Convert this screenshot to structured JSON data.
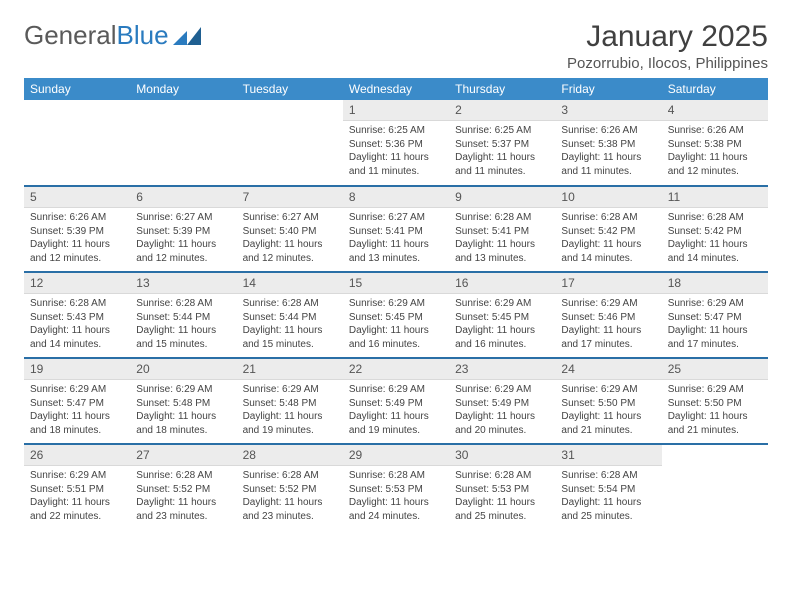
{
  "logo": {
    "text1": "General",
    "text2": "Blue"
  },
  "title": "January 2025",
  "location": "Pozorrubio, Ilocos, Philippines",
  "colors": {
    "header_bg": "#3b8bc9",
    "header_text": "#ffffff",
    "daynum_bg": "#ececec",
    "row_divider": "#2a6fa6",
    "logo_gray": "#5a5a5a",
    "logo_blue": "#2a7bbf"
  },
  "weekdays": [
    "Sunday",
    "Monday",
    "Tuesday",
    "Wednesday",
    "Thursday",
    "Friday",
    "Saturday"
  ],
  "weeks": [
    [
      {
        "empty": true
      },
      {
        "empty": true
      },
      {
        "empty": true
      },
      {
        "day": "1",
        "sunrise": "Sunrise: 6:25 AM",
        "sunset": "Sunset: 5:36 PM",
        "daylight1": "Daylight: 11 hours",
        "daylight2": "and 11 minutes."
      },
      {
        "day": "2",
        "sunrise": "Sunrise: 6:25 AM",
        "sunset": "Sunset: 5:37 PM",
        "daylight1": "Daylight: 11 hours",
        "daylight2": "and 11 minutes."
      },
      {
        "day": "3",
        "sunrise": "Sunrise: 6:26 AM",
        "sunset": "Sunset: 5:38 PM",
        "daylight1": "Daylight: 11 hours",
        "daylight2": "and 11 minutes."
      },
      {
        "day": "4",
        "sunrise": "Sunrise: 6:26 AM",
        "sunset": "Sunset: 5:38 PM",
        "daylight1": "Daylight: 11 hours",
        "daylight2": "and 12 minutes."
      }
    ],
    [
      {
        "day": "5",
        "sunrise": "Sunrise: 6:26 AM",
        "sunset": "Sunset: 5:39 PM",
        "daylight1": "Daylight: 11 hours",
        "daylight2": "and 12 minutes."
      },
      {
        "day": "6",
        "sunrise": "Sunrise: 6:27 AM",
        "sunset": "Sunset: 5:39 PM",
        "daylight1": "Daylight: 11 hours",
        "daylight2": "and 12 minutes."
      },
      {
        "day": "7",
        "sunrise": "Sunrise: 6:27 AM",
        "sunset": "Sunset: 5:40 PM",
        "daylight1": "Daylight: 11 hours",
        "daylight2": "and 12 minutes."
      },
      {
        "day": "8",
        "sunrise": "Sunrise: 6:27 AM",
        "sunset": "Sunset: 5:41 PM",
        "daylight1": "Daylight: 11 hours",
        "daylight2": "and 13 minutes."
      },
      {
        "day": "9",
        "sunrise": "Sunrise: 6:28 AM",
        "sunset": "Sunset: 5:41 PM",
        "daylight1": "Daylight: 11 hours",
        "daylight2": "and 13 minutes."
      },
      {
        "day": "10",
        "sunrise": "Sunrise: 6:28 AM",
        "sunset": "Sunset: 5:42 PM",
        "daylight1": "Daylight: 11 hours",
        "daylight2": "and 14 minutes."
      },
      {
        "day": "11",
        "sunrise": "Sunrise: 6:28 AM",
        "sunset": "Sunset: 5:42 PM",
        "daylight1": "Daylight: 11 hours",
        "daylight2": "and 14 minutes."
      }
    ],
    [
      {
        "day": "12",
        "sunrise": "Sunrise: 6:28 AM",
        "sunset": "Sunset: 5:43 PM",
        "daylight1": "Daylight: 11 hours",
        "daylight2": "and 14 minutes."
      },
      {
        "day": "13",
        "sunrise": "Sunrise: 6:28 AM",
        "sunset": "Sunset: 5:44 PM",
        "daylight1": "Daylight: 11 hours",
        "daylight2": "and 15 minutes."
      },
      {
        "day": "14",
        "sunrise": "Sunrise: 6:28 AM",
        "sunset": "Sunset: 5:44 PM",
        "daylight1": "Daylight: 11 hours",
        "daylight2": "and 15 minutes."
      },
      {
        "day": "15",
        "sunrise": "Sunrise: 6:29 AM",
        "sunset": "Sunset: 5:45 PM",
        "daylight1": "Daylight: 11 hours",
        "daylight2": "and 16 minutes."
      },
      {
        "day": "16",
        "sunrise": "Sunrise: 6:29 AM",
        "sunset": "Sunset: 5:45 PM",
        "daylight1": "Daylight: 11 hours",
        "daylight2": "and 16 minutes."
      },
      {
        "day": "17",
        "sunrise": "Sunrise: 6:29 AM",
        "sunset": "Sunset: 5:46 PM",
        "daylight1": "Daylight: 11 hours",
        "daylight2": "and 17 minutes."
      },
      {
        "day": "18",
        "sunrise": "Sunrise: 6:29 AM",
        "sunset": "Sunset: 5:47 PM",
        "daylight1": "Daylight: 11 hours",
        "daylight2": "and 17 minutes."
      }
    ],
    [
      {
        "day": "19",
        "sunrise": "Sunrise: 6:29 AM",
        "sunset": "Sunset: 5:47 PM",
        "daylight1": "Daylight: 11 hours",
        "daylight2": "and 18 minutes."
      },
      {
        "day": "20",
        "sunrise": "Sunrise: 6:29 AM",
        "sunset": "Sunset: 5:48 PM",
        "daylight1": "Daylight: 11 hours",
        "daylight2": "and 18 minutes."
      },
      {
        "day": "21",
        "sunrise": "Sunrise: 6:29 AM",
        "sunset": "Sunset: 5:48 PM",
        "daylight1": "Daylight: 11 hours",
        "daylight2": "and 19 minutes."
      },
      {
        "day": "22",
        "sunrise": "Sunrise: 6:29 AM",
        "sunset": "Sunset: 5:49 PM",
        "daylight1": "Daylight: 11 hours",
        "daylight2": "and 19 minutes."
      },
      {
        "day": "23",
        "sunrise": "Sunrise: 6:29 AM",
        "sunset": "Sunset: 5:49 PM",
        "daylight1": "Daylight: 11 hours",
        "daylight2": "and 20 minutes."
      },
      {
        "day": "24",
        "sunrise": "Sunrise: 6:29 AM",
        "sunset": "Sunset: 5:50 PM",
        "daylight1": "Daylight: 11 hours",
        "daylight2": "and 21 minutes."
      },
      {
        "day": "25",
        "sunrise": "Sunrise: 6:29 AM",
        "sunset": "Sunset: 5:50 PM",
        "daylight1": "Daylight: 11 hours",
        "daylight2": "and 21 minutes."
      }
    ],
    [
      {
        "day": "26",
        "sunrise": "Sunrise: 6:29 AM",
        "sunset": "Sunset: 5:51 PM",
        "daylight1": "Daylight: 11 hours",
        "daylight2": "and 22 minutes."
      },
      {
        "day": "27",
        "sunrise": "Sunrise: 6:28 AM",
        "sunset": "Sunset: 5:52 PM",
        "daylight1": "Daylight: 11 hours",
        "daylight2": "and 23 minutes."
      },
      {
        "day": "28",
        "sunrise": "Sunrise: 6:28 AM",
        "sunset": "Sunset: 5:52 PM",
        "daylight1": "Daylight: 11 hours",
        "daylight2": "and 23 minutes."
      },
      {
        "day": "29",
        "sunrise": "Sunrise: 6:28 AM",
        "sunset": "Sunset: 5:53 PM",
        "daylight1": "Daylight: 11 hours",
        "daylight2": "and 24 minutes."
      },
      {
        "day": "30",
        "sunrise": "Sunrise: 6:28 AM",
        "sunset": "Sunset: 5:53 PM",
        "daylight1": "Daylight: 11 hours",
        "daylight2": "and 25 minutes."
      },
      {
        "day": "31",
        "sunrise": "Sunrise: 6:28 AM",
        "sunset": "Sunset: 5:54 PM",
        "daylight1": "Daylight: 11 hours",
        "daylight2": "and 25 minutes."
      },
      {
        "empty": true
      }
    ]
  ]
}
